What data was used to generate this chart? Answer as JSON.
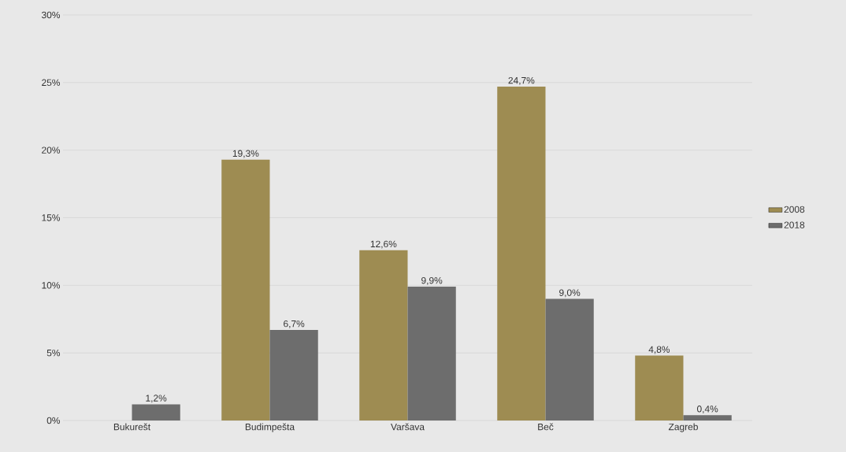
{
  "chart_data": {
    "type": "bar",
    "categories": [
      "Bukurešt",
      "Budimpešta",
      "Varšava",
      "Beč",
      "Zagreb"
    ],
    "series": [
      {
        "name": "2008",
        "color": "#9e8c52",
        "values": [
          null,
          19.3,
          12.6,
          24.7,
          4.8
        ],
        "value_labels": [
          null,
          "19,3%",
          "12,6%",
          "24,7%",
          "4,8%"
        ]
      },
      {
        "name": "2018",
        "color": "#6d6d6d",
        "values": [
          1.2,
          6.7,
          9.9,
          9.0,
          0.4
        ],
        "value_labels": [
          "1,2%",
          "6,7%",
          "9,9%",
          "9,0%",
          "0,4%"
        ]
      }
    ],
    "ylim": [
      0,
      30
    ],
    "yticks": [
      {
        "value": 0,
        "label": "0%"
      },
      {
        "value": 5,
        "label": "5%"
      },
      {
        "value": 10,
        "label": "10%"
      },
      {
        "value": 15,
        "label": "15%"
      },
      {
        "value": 20,
        "label": "20%"
      },
      {
        "value": 25,
        "label": "25%"
      },
      {
        "value": 30,
        "label": "30%"
      }
    ],
    "grid": "y",
    "legend": "right"
  }
}
